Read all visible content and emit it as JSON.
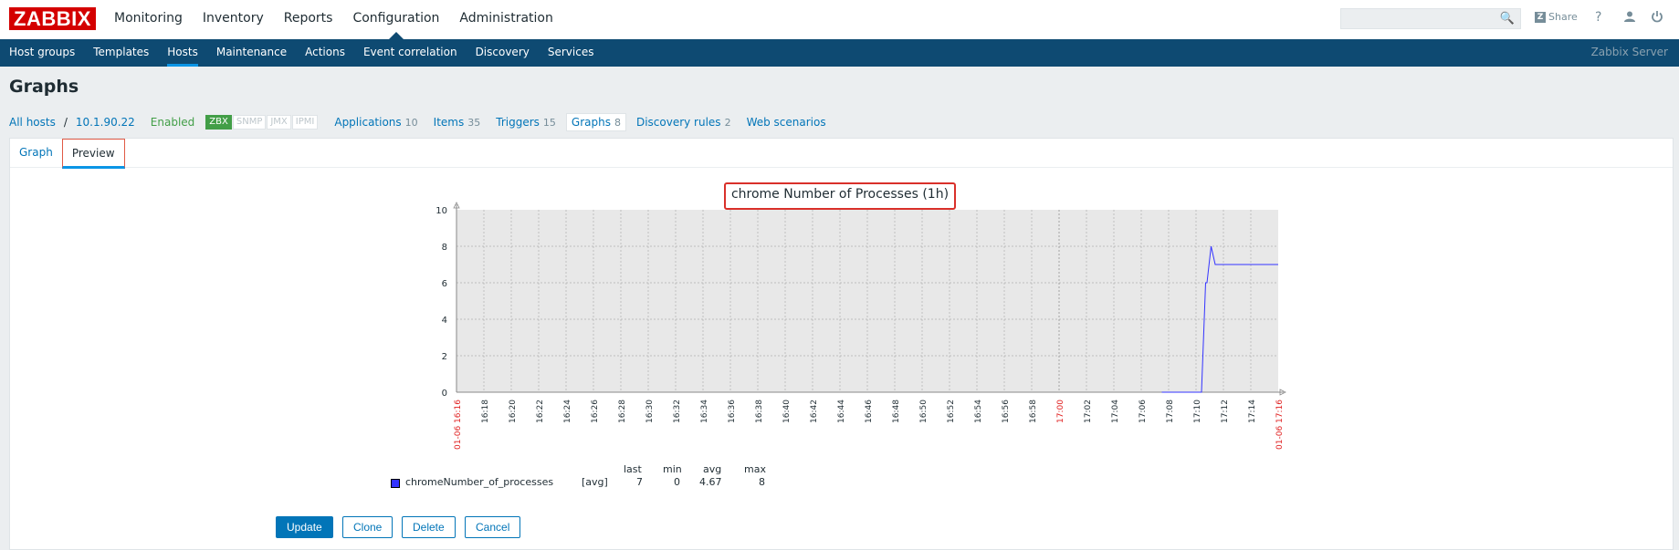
{
  "app": {
    "logo": "ZABBIX",
    "top_menu": [
      "Monitoring",
      "Inventory",
      "Reports",
      "Configuration",
      "Administration"
    ],
    "top_menu_active": "Configuration",
    "share_label": "Share",
    "server_name": "Zabbix Server"
  },
  "sub_menu": [
    "Host groups",
    "Templates",
    "Hosts",
    "Maintenance",
    "Actions",
    "Event correlation",
    "Discovery",
    "Services"
  ],
  "page_title": "Graphs",
  "host_nav": {
    "all_hosts": "All hosts",
    "separator": "/",
    "host": "10.1.90.22",
    "status": "Enabled",
    "availability": [
      "ZBX",
      "SNMP",
      "JMX",
      "IPMI"
    ],
    "links": [
      {
        "label": "Applications",
        "count": "10"
      },
      {
        "label": "Items",
        "count": "35"
      },
      {
        "label": "Triggers",
        "count": "15"
      },
      {
        "label": "Graphs",
        "count": "8"
      },
      {
        "label": "Discovery rules",
        "count": "2"
      },
      {
        "label": "Web scenarios",
        "count": ""
      }
    ]
  },
  "tabs": [
    "Graph",
    "Preview"
  ],
  "active_tab": "Preview",
  "chart_data": {
    "type": "line",
    "title": "chrome Number of Processes (1h)",
    "ylim": [
      0,
      10
    ],
    "yticks": [
      "0",
      "2",
      "4",
      "6",
      "8",
      "10"
    ],
    "xticks": [
      "16:16",
      "16:18",
      "16:20",
      "16:22",
      "16:24",
      "16:26",
      "16:28",
      "16:30",
      "16:32",
      "16:34",
      "16:36",
      "16:38",
      "16:40",
      "16:42",
      "16:44",
      "16:46",
      "16:48",
      "16:50",
      "16:52",
      "16:54",
      "16:56",
      "16:58",
      "17:00",
      "17:02",
      "17:04",
      "17:06",
      "17:08",
      "17:10",
      "17:12",
      "17:14",
      "17:16"
    ],
    "x_start_label": "01-06 16:16",
    "x_end_label": "01-06 17:16",
    "series": [
      {
        "name": "chromeNumber_of_processes",
        "color": "#3333ff",
        "points": [
          [
            51.5,
            0
          ],
          [
            54.4,
            0
          ],
          [
            54.7,
            6
          ],
          [
            54.8,
            6
          ],
          [
            55.1,
            8
          ],
          [
            55.4,
            7
          ],
          [
            56.0,
            7
          ],
          [
            60.0,
            7
          ]
        ]
      }
    ],
    "legend": {
      "headers": [
        "last",
        "min",
        "avg",
        "max"
      ],
      "rows": [
        {
          "name": "chromeNumber_of_processes",
          "func": "[avg]",
          "last": "7",
          "min": "0",
          "avg": "4.67",
          "max": "8"
        }
      ]
    },
    "grid": true
  },
  "buttons": {
    "update": "Update",
    "clone": "Clone",
    "delete": "Delete",
    "cancel": "Cancel"
  }
}
